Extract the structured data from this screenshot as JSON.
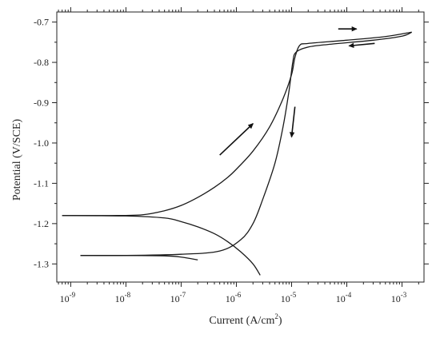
{
  "chart_data": {
    "type": "line",
    "xlabel": "Current (A/cm",
    "xlabel_sup": "2",
    "xlabel_end": ")",
    "ylabel": "Potential (V/SCE)",
    "x_scale": "log",
    "xlim": [
      5.6e-10,
      0.0025
    ],
    "ylim": [
      -1.345,
      -0.675
    ],
    "grid": false,
    "x_ticks": [
      {
        "value": 1e-09,
        "base": "10",
        "exp": "-9"
      },
      {
        "value": 1e-08,
        "base": "10",
        "exp": "-8"
      },
      {
        "value": 1e-07,
        "base": "10",
        "exp": "-7"
      },
      {
        "value": 1e-06,
        "base": "10",
        "exp": "-6"
      },
      {
        "value": 1e-05,
        "base": "10",
        "exp": "-5"
      },
      {
        "value": 0.0001,
        "base": "10",
        "exp": "-4"
      },
      {
        "value": 0.001,
        "base": "10",
        "exp": "-3"
      }
    ],
    "y_ticks": [
      {
        "value": -0.7,
        "label": "-0.7"
      },
      {
        "value": -0.8,
        "label": "-0.8"
      },
      {
        "value": -0.9,
        "label": "-0.9"
      },
      {
        "value": -1.0,
        "label": "-1.0"
      },
      {
        "value": -1.1,
        "label": "-1.1"
      },
      {
        "value": -1.2,
        "label": "-1.2"
      },
      {
        "value": -1.3,
        "label": "-1.3"
      }
    ],
    "series": [
      {
        "values": [
          [
            7e-10,
            -1.18
          ],
          [
            5e-09,
            -1.18
          ],
          [
            2e-08,
            -1.178
          ],
          [
            5e-08,
            -1.168
          ],
          [
            1e-07,
            -1.155
          ],
          [
            2e-07,
            -1.135
          ],
          [
            4e-07,
            -1.11
          ],
          [
            7e-07,
            -1.085
          ],
          [
            1e-06,
            -1.065
          ],
          [
            2e-06,
            -1.02
          ],
          [
            4e-06,
            -0.96
          ],
          [
            7e-06,
            -0.89
          ],
          [
            1e-05,
            -0.83
          ],
          [
            1.15e-05,
            -0.788
          ],
          [
            1.4e-05,
            -0.758
          ],
          [
            2e-05,
            -0.753
          ],
          [
            0.0001,
            -0.745
          ],
          [
            0.0005,
            -0.736
          ],
          [
            0.0015,
            -0.725
          ]
        ]
      },
      {
        "values": [
          [
            0.0015,
            -0.725
          ],
          [
            0.001,
            -0.735
          ],
          [
            0.0003,
            -0.745
          ],
          [
            5e-05,
            -0.755
          ],
          [
            2e-05,
            -0.762
          ],
          [
            1.2e-05,
            -0.775
          ],
          [
            1.05e-05,
            -0.8
          ],
          [
            9e-06,
            -0.87
          ],
          [
            7e-06,
            -0.96
          ],
          [
            5e-06,
            -1.05
          ],
          [
            3e-06,
            -1.14
          ],
          [
            2e-06,
            -1.2
          ],
          [
            1.2e-06,
            -1.24
          ],
          [
            5e-07,
            -1.268
          ],
          [
            1e-07,
            -1.276
          ],
          [
            1e-08,
            -1.279
          ],
          [
            1.5e-09,
            -1.279
          ]
        ]
      },
      {
        "values": [
          [
            7e-10,
            -1.18
          ],
          [
            1e-08,
            -1.181
          ],
          [
            5e-08,
            -1.186
          ],
          [
            1e-07,
            -1.195
          ],
          [
            2e-07,
            -1.208
          ],
          [
            4e-07,
            -1.225
          ],
          [
            7e-07,
            -1.245
          ],
          [
            1.2e-06,
            -1.27
          ],
          [
            2e-06,
            -1.3
          ],
          [
            2.7e-06,
            -1.328
          ]
        ]
      },
      {
        "values": [
          [
            1.5e-09,
            -1.279
          ],
          [
            1e-08,
            -1.279
          ],
          [
            5e-08,
            -1.28
          ],
          [
            1e-07,
            -1.283
          ],
          [
            2e-07,
            -1.29
          ]
        ]
      }
    ],
    "arrows": [
      {
        "from": [
          5e-07,
          -1.03
        ],
        "to": [
          2e-06,
          -0.952
        ]
      },
      {
        "from": [
          1.15e-05,
          -0.91
        ],
        "to": [
          1e-05,
          -0.985
        ]
      },
      {
        "from": [
          7e-05,
          -0.717
        ],
        "to": [
          0.00015,
          -0.717
        ]
      },
      {
        "from": [
          0.00032,
          -0.753
        ],
        "to": [
          0.00011,
          -0.759
        ]
      }
    ]
  }
}
